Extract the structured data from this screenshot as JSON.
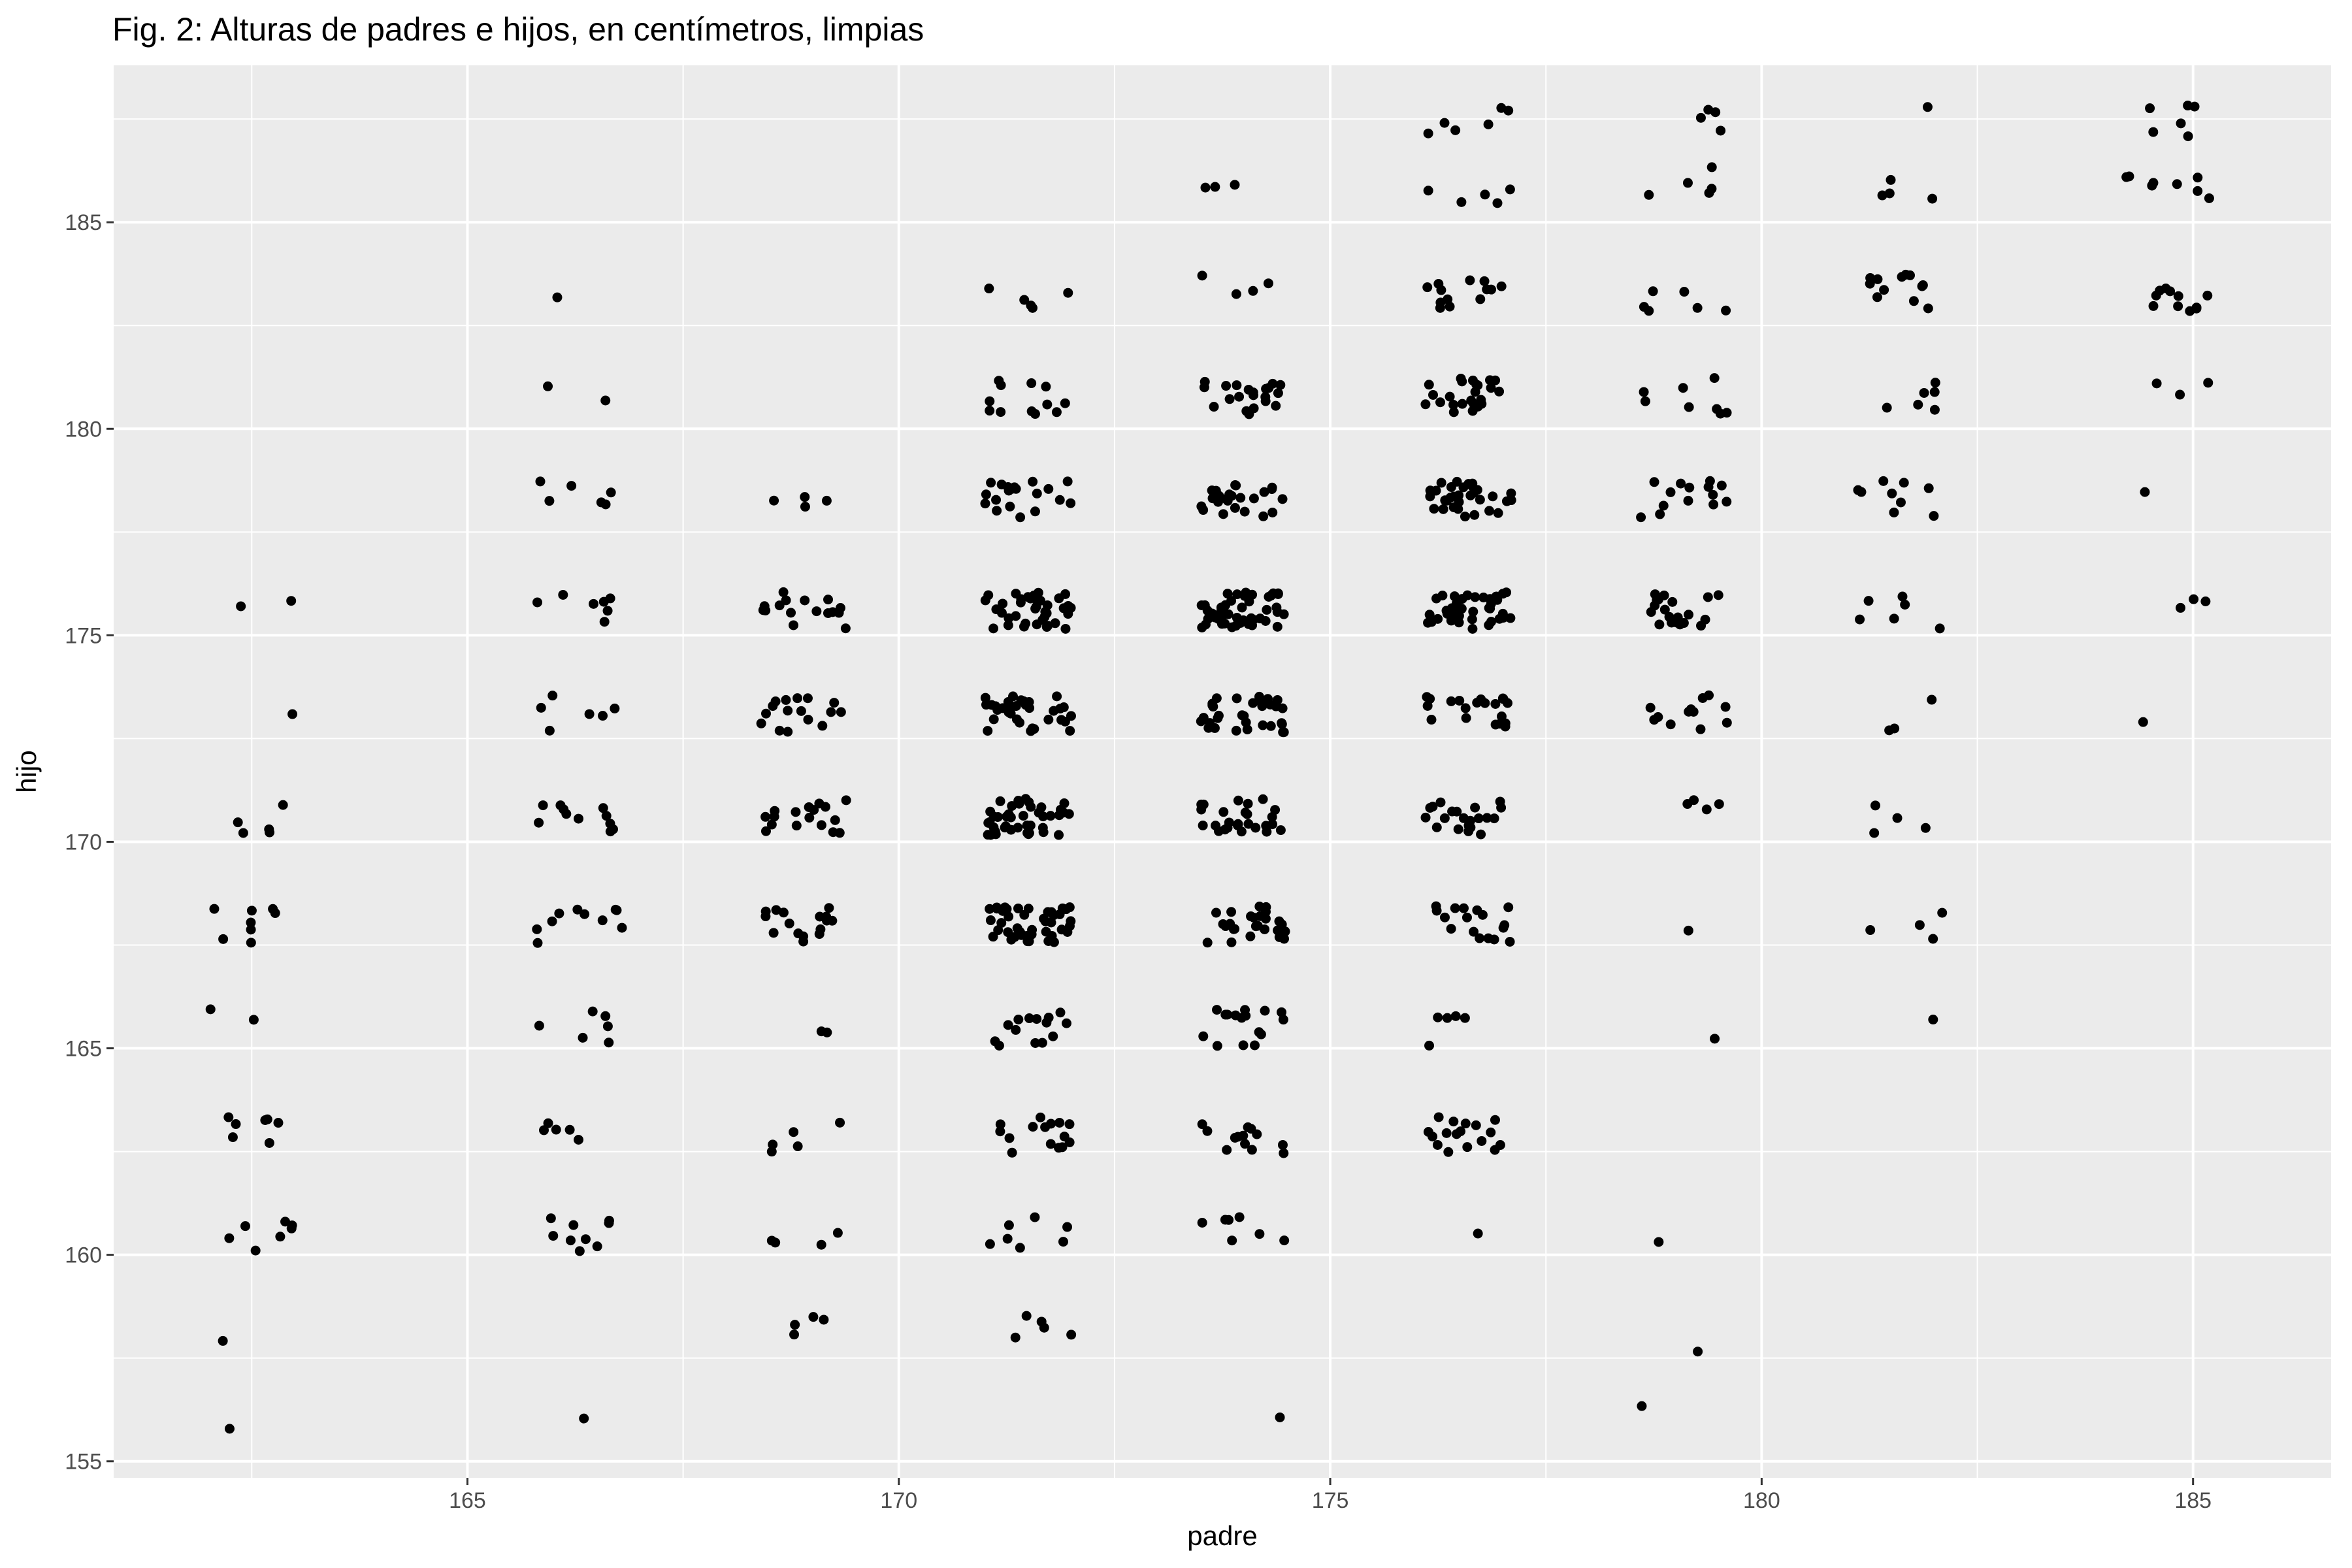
{
  "chart_data": {
    "type": "scatter",
    "title": "Fig. 2: Alturas de padres e hijos, en centímetros, limpias",
    "xlabel": "padre",
    "ylabel": "hijo",
    "xlim": [
      160.9,
      186.6
    ],
    "ylim": [
      154.6,
      188.8
    ],
    "x_ticks": [
      165,
      170,
      175,
      180,
      185
    ],
    "y_ticks": [
      155,
      160,
      165,
      170,
      175,
      180,
      185
    ],
    "grid": true,
    "legend": "none",
    "colors": {
      "panel": "#ebebeb",
      "grid": "#ffffff",
      "point": "#000000"
    },
    "x_groups": [
      162.5,
      166.3,
      168.9,
      171.5,
      174.0,
      176.6,
      179.1,
      181.6,
      184.7
    ],
    "y_groups": [
      156.2,
      158.1,
      160.5,
      162.9,
      165.5,
      168.0,
      170.6,
      173.1,
      175.6,
      178.3,
      180.8,
      183.3,
      185.9,
      187.5
    ],
    "counts": [
      [
        1,
        1,
        7,
        7,
        2,
        8,
        5,
        1,
        2,
        0,
        0,
        0,
        0,
        0
      ],
      [
        1,
        0,
        9,
        5,
        6,
        10,
        11,
        6,
        7,
        6,
        2,
        1,
        0,
        0
      ],
      [
        0,
        4,
        4,
        5,
        2,
        16,
        17,
        16,
        16,
        4,
        0,
        0,
        0,
        0
      ],
      [
        0,
        5,
        7,
        15,
        14,
        44,
        42,
        34,
        38,
        20,
        12,
        5,
        0,
        0
      ],
      [
        1,
        0,
        7,
        13,
        16,
        26,
        26,
        32,
        50,
        24,
        21,
        4,
        3,
        0
      ],
      [
        0,
        0,
        1,
        17,
        5,
        17,
        21,
        20,
        40,
        32,
        24,
        13,
        5,
        6
      ],
      [
        1,
        1,
        1,
        0,
        1,
        1,
        4,
        12,
        21,
        14,
        8,
        6,
        5,
        4
      ],
      [
        0,
        0,
        0,
        0,
        1,
        4,
        4,
        3,
        6,
        9,
        6,
        12,
        4,
        1
      ],
      [
        0,
        0,
        0,
        0,
        0,
        0,
        0,
        1,
        3,
        1,
        3,
        11,
        8,
        6
      ]
    ],
    "jitter": {
      "x": 0.5,
      "y": 0.45
    }
  }
}
